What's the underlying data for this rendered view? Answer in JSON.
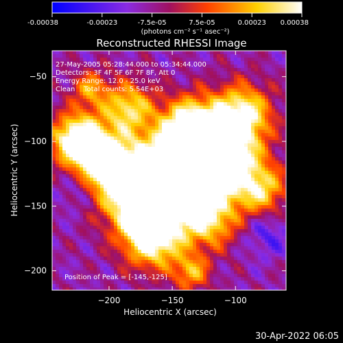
{
  "colorbar": {
    "ticks": [
      "-0.00038",
      "-0.00023",
      "-7.5e-05",
      "7.5e-05",
      "0.00023",
      "0.00038"
    ],
    "unit_label": "(photons cm⁻² s⁻¹ asec⁻²)",
    "colors": [
      "#0000ff",
      "#8a2be2",
      "#a01060",
      "#ff4000",
      "#ffd000",
      "#ffffff"
    ]
  },
  "chart_data": {
    "type": "heatmap",
    "title": "Reconstructed RHESSI Image",
    "xlabel": "Heliocentric X (arcsec)",
    "ylabel": "Heliocentric Y (arcsec)",
    "xlim": [
      -245,
      -60
    ],
    "ylim": [
      -215,
      -30
    ],
    "x_ticks": [
      -200,
      -150,
      -100
    ],
    "y_ticks": [
      -50,
      -100,
      -150,
      -200
    ],
    "x_tick_labels": [
      "−200",
      "−150",
      "−100"
    ],
    "y_tick_labels": [
      "−50",
      "−100",
      "−150",
      "−200"
    ],
    "zlim": [
      -0.00038,
      0.00038
    ],
    "peak": [
      -145,
      -125
    ],
    "info_lines": [
      "27-May-2005 05:28:44.000 to 05:34:44.000",
      "Detectors: 3F 4F 5F 6F 7F 8F, Att 0",
      "Energy Range: 12.0 - 25.0 keV",
      "Clean    Total counts: 5.54E+03"
    ],
    "peak_label": "Position of Peak = [-145,-125]"
  },
  "footer": {
    "timestamp": "30-Apr-2022 06:05"
  }
}
